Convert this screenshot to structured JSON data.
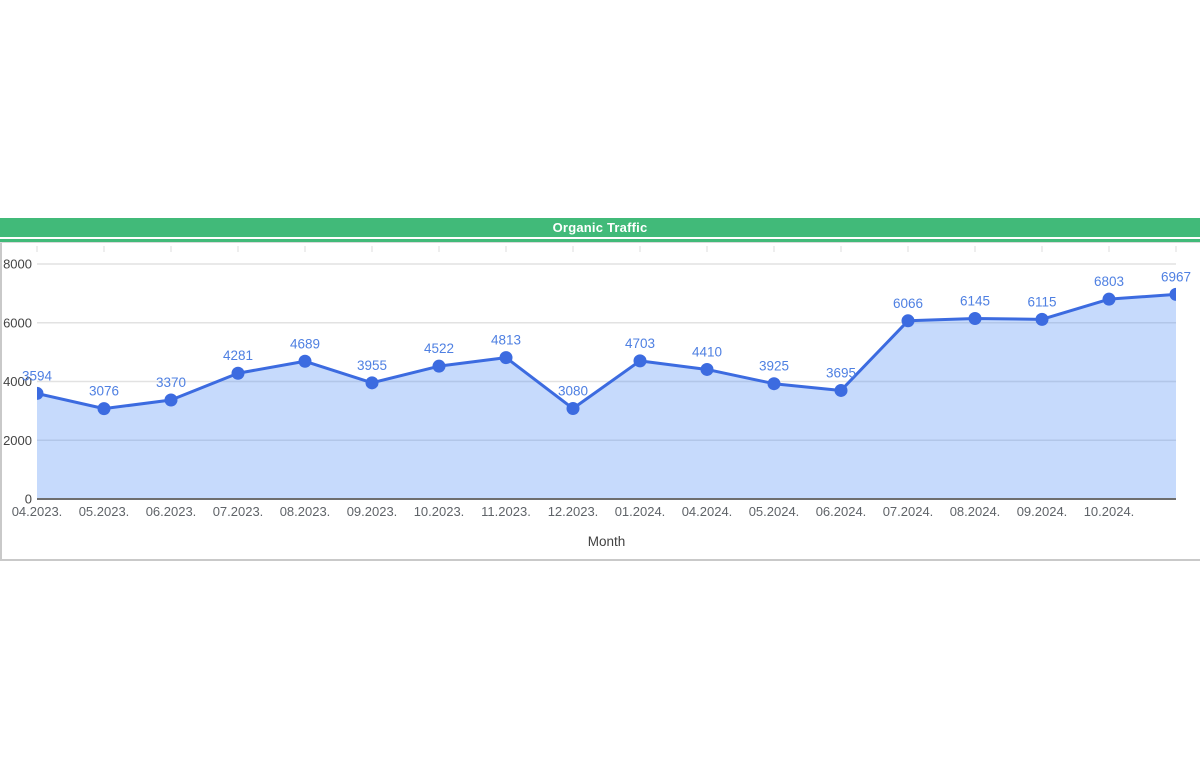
{
  "chart_data": {
    "type": "area",
    "title": "Organic Traffic",
    "xlabel": "Month",
    "ylabel": "",
    "ylim": [
      0,
      8000
    ],
    "yticks": [
      0,
      2000,
      4000,
      6000,
      8000
    ],
    "categories": [
      "04.2023.",
      "05.2023.",
      "06.2023.",
      "07.2023.",
      "08.2023.",
      "09.2023.",
      "10.2023.",
      "11.2023.",
      "12.2023.",
      "01.2024.",
      "04.2024.",
      "05.2024.",
      "06.2024.",
      "07.2024.",
      "08.2024.",
      "09.2024.",
      "10.2024.",
      ""
    ],
    "values": [
      3594,
      3076,
      3370,
      4281,
      4689,
      3955,
      4522,
      4813,
      3080,
      4703,
      4410,
      3925,
      3695,
      6066,
      6145,
      6115,
      6803,
      6967
    ],
    "series_name": "Organic Traffic",
    "grid": "horizontal",
    "legend": "none",
    "data_labels_shown": true,
    "colors": {
      "line": "#3c6be0",
      "fill": "rgba(66,133,244,0.3)",
      "point": "#3c6be0",
      "data_label": "#4f80e2",
      "header_bar": "#41ba79",
      "axis_line": "#6e6e6e",
      "gridline": "#e2e2e2",
      "x_tick_text": "#5f6368",
      "y_tick_text": "#444444",
      "title_text": "#ffffff"
    }
  }
}
